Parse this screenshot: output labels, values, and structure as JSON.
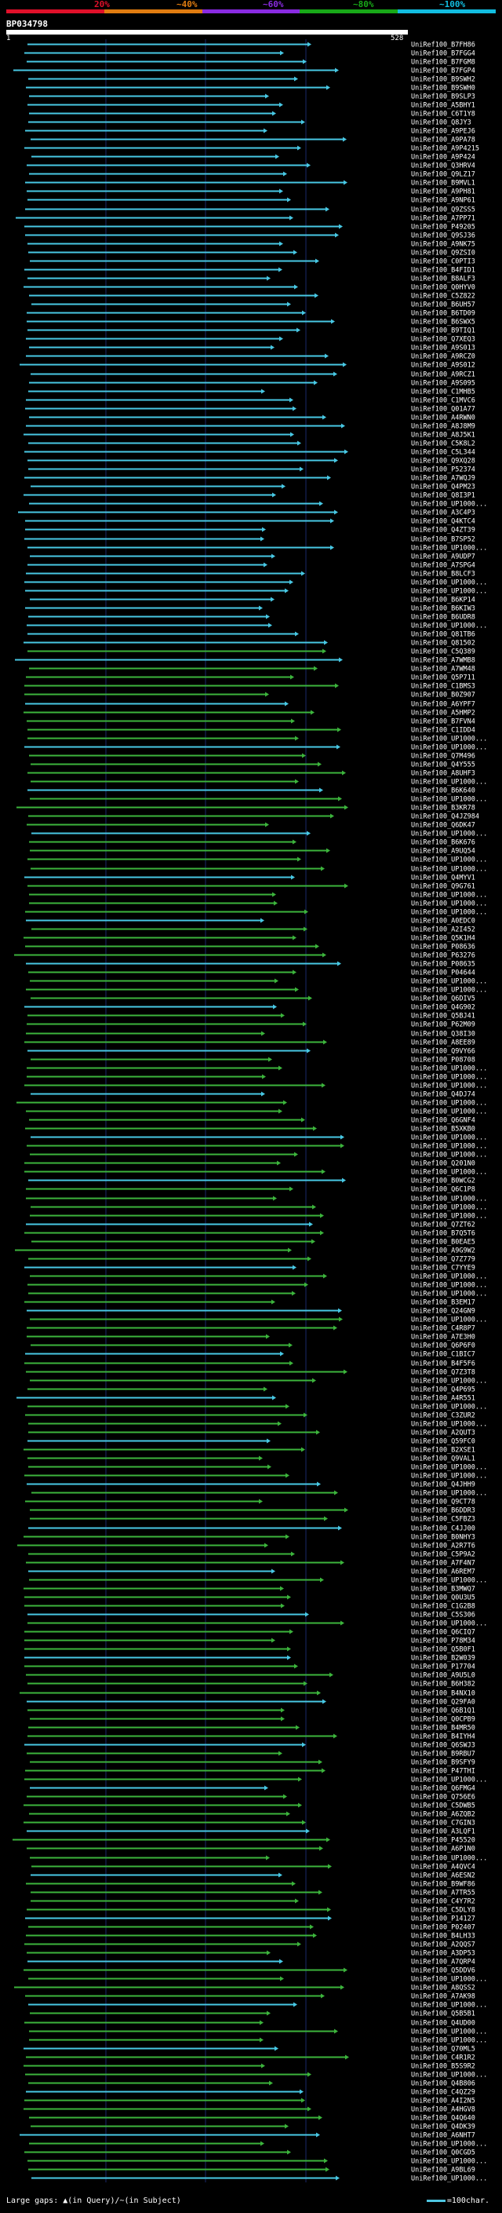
{
  "scale": {
    "labels": [
      "20%",
      "~40%",
      "~60%",
      "~80%",
      "~100%"
    ],
    "band_colors": [
      "#e0102a",
      "#e07c10",
      "#8a2be2",
      "#18a818",
      "#12bde0"
    ]
  },
  "query": {
    "id": "BP034798",
    "start": "1",
    "end": "528"
  },
  "colors": {
    "cyan": "#48c8e4",
    "green": "#3cb43c",
    "gridline": "#1a2a6a"
  },
  "hits": [
    "UniRef100_B7FH86",
    "UniRef100_B7FGG4",
    "UniRef100_B7FGM8",
    "UniRef100_B7FGP4",
    "UniRef100_B9SWH2",
    "UniRef100_B9SWH0",
    "UniRef100_B9SLP3",
    "UniRef100_A5BHY1",
    "UniRef100_C6T1Y8",
    "UniRef100_Q8JY3",
    "UniRef100_A9PEJ6",
    "UniRef100_A9PA78",
    "UniRef100_A9P4215",
    "UniRef100_A9P424",
    "UniRef100_Q3HRV4",
    "UniRef100_Q9LZ17",
    "UniRef100_B9MVL1",
    "UniRef100_A9PH81",
    "UniRef100_A9NP61",
    "UniRef100_Q9ZSS5",
    "UniRef100_A7PP71",
    "UniRef100_P49205",
    "UniRef100_Q9SJ36",
    "UniRef100_A9NK75",
    "UniRef100_Q9ZSI0",
    "UniRef100_C0PTI3",
    "UniRef100_B4FID1",
    "UniRef100_B8ALF3",
    "UniRef100_Q0HYV0",
    "UniRef100_C5Z822",
    "UniRef100_B6UH57",
    "UniRef100_B6TD09",
    "UniRef100_B6SWX5",
    "UniRef100_B9TIQ1",
    "UniRef100_Q7XEQ3",
    "UniRef100_A9S013",
    "UniRef100_A9RCZ0",
    "UniRef100_A9S012",
    "UniRef100_A9RCZ1",
    "UniRef100_A9S095",
    "UniRef100_C1MHB5",
    "UniRef100_C1MVC6",
    "UniRef100_Q01A77",
    "UniRef100_A4RWN0",
    "UniRef100_A8J8M9",
    "UniRef100_A8J5K1",
    "UniRef100_C5K8L2",
    "UniRef100_C5L344",
    "UniRef100_Q9XQ28",
    "UniRef100_P52374",
    "UniRef100_A7WQJ9",
    "UniRef100_Q4PM23",
    "UniRef100_Q8I3P1",
    "UniRef100_UP1000...",
    "UniRef100_A3C4P3",
    "UniRef100_Q4KTC4",
    "UniRef100_Q4ZT39",
    "UniRef100_B7SP52",
    "UniRef100_UP1000...",
    "UniRef100_A9UDP7",
    "UniRef100_A7SPG4",
    "UniRef100_B8LCF3",
    "UniRef100_UP1000...",
    "UniRef100_UP1000...",
    "UniRef100_B6KP14",
    "UniRef100_B6KIW3",
    "UniRef100_B6UDR8",
    "UniRef100_UP1000...",
    "UniRef100_Q81TB6",
    "UniRef100_Q81502",
    "UniRef100_C5Q389",
    "UniRef100_A7WMB8",
    "UniRef100_A7WM48",
    "UniRef100_Q5P711",
    "UniRef100_C1BMS3",
    "UniRef100_B0Z907",
    "UniRef100_A6YPF7",
    "UniRef100_A5HMP2",
    "UniRef100_B7FVN4",
    "UniRef100_C1IDD4",
    "UniRef100_UP1000...",
    "UniRef100_UP1000...",
    "UniRef100_Q7M496",
    "UniRef100_Q4Y555",
    "UniRef100_A8UHF3",
    "UniRef100_UP1000...",
    "UniRef100_B6K640",
    "UniRef100_UP1000...",
    "UniRef100_B3KR78",
    "UniRef100_Q4JZ984",
    "UniRef100_Q6DK47",
    "UniRef100_UP1000...",
    "UniRef100_B6K676",
    "UniRef100_A9UQ54",
    "UniRef100_UP1000...",
    "UniRef100_UP1000...",
    "UniRef100_Q4MYV1",
    "UniRef100_Q9G761",
    "UniRef100_UP1000...",
    "UniRef100_UP1000...",
    "UniRef100_UP1000...",
    "UniRef100_A0EDC0",
    "UniRef100_A2I452",
    "UniRef100_Q5K1H4",
    "UniRef100_P08636",
    "UniRef100_P63276",
    "UniRef100_P08635",
    "UniRef100_P04644",
    "UniRef100_UP1000...",
    "UniRef100_UP1000...",
    "UniRef100_Q6DIV5",
    "UniRef100_Q4G902",
    "UniRef100_Q5BJ41",
    "UniRef100_P62M09",
    "UniRef100_Q38I30",
    "UniRef100_A8EE89",
    "UniRef100_Q9VY66",
    "UniRef100_P08708",
    "UniRef100_UP1000...",
    "UniRef100_UP1000...",
    "UniRef100_UP1000...",
    "UniRef100_Q4DJ74",
    "UniRef100_UP1000...",
    "UniRef100_UP1000...",
    "UniRef100_Q6GNF4",
    "UniRef100_B5XKB0",
    "UniRef100_UP1000...",
    "UniRef100_UP1000...",
    "UniRef100_UP1000...",
    "UniRef100_Q201N0",
    "UniRef100_UP1000...",
    "UniRef100_B0WCG2",
    "UniRef100_Q6C1P8",
    "UniRef100_UP1000...",
    "UniRef100_UP1000...",
    "UniRef100_UP1000...",
    "UniRef100_Q7ZT62",
    "UniRef100_B7Q5T6",
    "UniRef100_B0EAE5",
    "UniRef100_A9G9W2",
    "UniRef100_Q7Z779",
    "UniRef100_C7YYE9",
    "UniRef100_UP1000...",
    "UniRef100_UP1000...",
    "UniRef100_UP1000...",
    "UniRef100_B3EM17",
    "UniRef100_Q24GN9",
    "UniRef100_UP1000...",
    "UniRef100_C4R8P7",
    "UniRef100_A7E3H0",
    "UniRef100_Q6P6F0",
    "UniRef100_C1BIC7",
    "UniRef100_B4F5F6",
    "UniRef100_Q7Z3T8",
    "UniRef100_UP1000...",
    "UniRef100_Q4P695",
    "UniRef100_A4R551",
    "UniRef100_UP1000...",
    "UniRef100_C3ZUR2",
    "UniRef100_UP1000...",
    "UniRef100_A2QUT3",
    "UniRef100_Q59FC0",
    "UniRef100_B2XSE1",
    "UniRef100_Q9VAL1",
    "UniRef100_UP1000...",
    "UniRef100_UP1000...",
    "UniRef100_Q4JHH9",
    "UniRef100_UP1000...",
    "UniRef100_Q9CT78",
    "UniRef100_B6DDR3",
    "UniRef100_C5FBZ3",
    "UniRef100_C4JJ00",
    "UniRef100_B0NHY3",
    "UniRef100_A2R7T6",
    "UniRef100_C5P9A2",
    "UniRef100_A7F4N7",
    "UniRef100_A6REM7",
    "UniRef100_UP1000...",
    "UniRef100_B3MWQ7",
    "UniRef100_Q0U3U5",
    "UniRef100_C1G2B8",
    "UniRef100_C5S306",
    "UniRef100_UP1000...",
    "UniRef100_Q6CIQ7",
    "UniRef100_P78M34",
    "UniRef100_Q5B0F1",
    "UniRef100_B2W039",
    "UniRef100_P17704",
    "UniRef100_A9U5L0",
    "UniRef100_B6H382",
    "UniRef100_B4NX10",
    "UniRef100_Q29FA0",
    "UniRef100_Q6B1Q1",
    "UniRef100_Q0CPB9",
    "UniRef100_B4MR50",
    "UniRef100_B4IYH4",
    "UniRef100_Q6SWJ3",
    "UniRef100_B9RBU7",
    "UniRef100_B9SFY9",
    "UniRef100_P47THI",
    "UniRef100_UP1000...",
    "UniRef100_Q6FMG4",
    "UniRef100_Q756E6",
    "UniRef100_C5DWB5",
    "UniRef100_A6ZQB2",
    "UniRef100_C7GIN3",
    "UniRef100_A3LQF1",
    "UniRef100_P45520",
    "UniRef100_A6P1N0",
    "UniRef100_UP1000...",
    "UniRef100_A4QVC4",
    "UniRef100_A6ESN2",
    "UniRef100_B9WF86",
    "UniRef100_A7TR55",
    "UniRef100_C4Y7R2",
    "UniRef100_C5DLY8",
    "UniRef100_P14127",
    "UniRef100_P02407",
    "UniRef100_B4LH33",
    "UniRef100_A2QQS7",
    "UniRef100_A3DP53",
    "UniRef100_A7QRP4",
    "UniRef100_Q5DDV6",
    "UniRef100_UP1000...",
    "UniRef100_A8QSS2",
    "UniRef100_A7AK98",
    "UniRef100_UP1000...",
    "UniRef100_Q5B5B1",
    "UniRef100_Q4UD00",
    "UniRef100_UP1000...",
    "UniRef100_UP1000...",
    "UniRef100_Q70ML5",
    "UniRef100_C4R1R2",
    "UniRef100_B5S9R2",
    "UniRef100_UP1000...",
    "UniRef100_Q4B806",
    "UniRef100_C4QZ29",
    "UniRef100_A4I2N5",
    "UniRef100_A4HGV8",
    "UniRef100_Q4Q640",
    "UniRef100_Q4DK39",
    "UniRef100_A6NHT7",
    "UniRef100_UP1000...",
    "UniRef100_Q0CGD5",
    "UniRef100_UP1000...",
    "UniRef100_A9BL69",
    "UniRef100_UP1000..."
  ],
  "footer": {
    "legend": "Large gaps: ▲(in Query)/~(in Subject)",
    "scale": "=100char."
  }
}
